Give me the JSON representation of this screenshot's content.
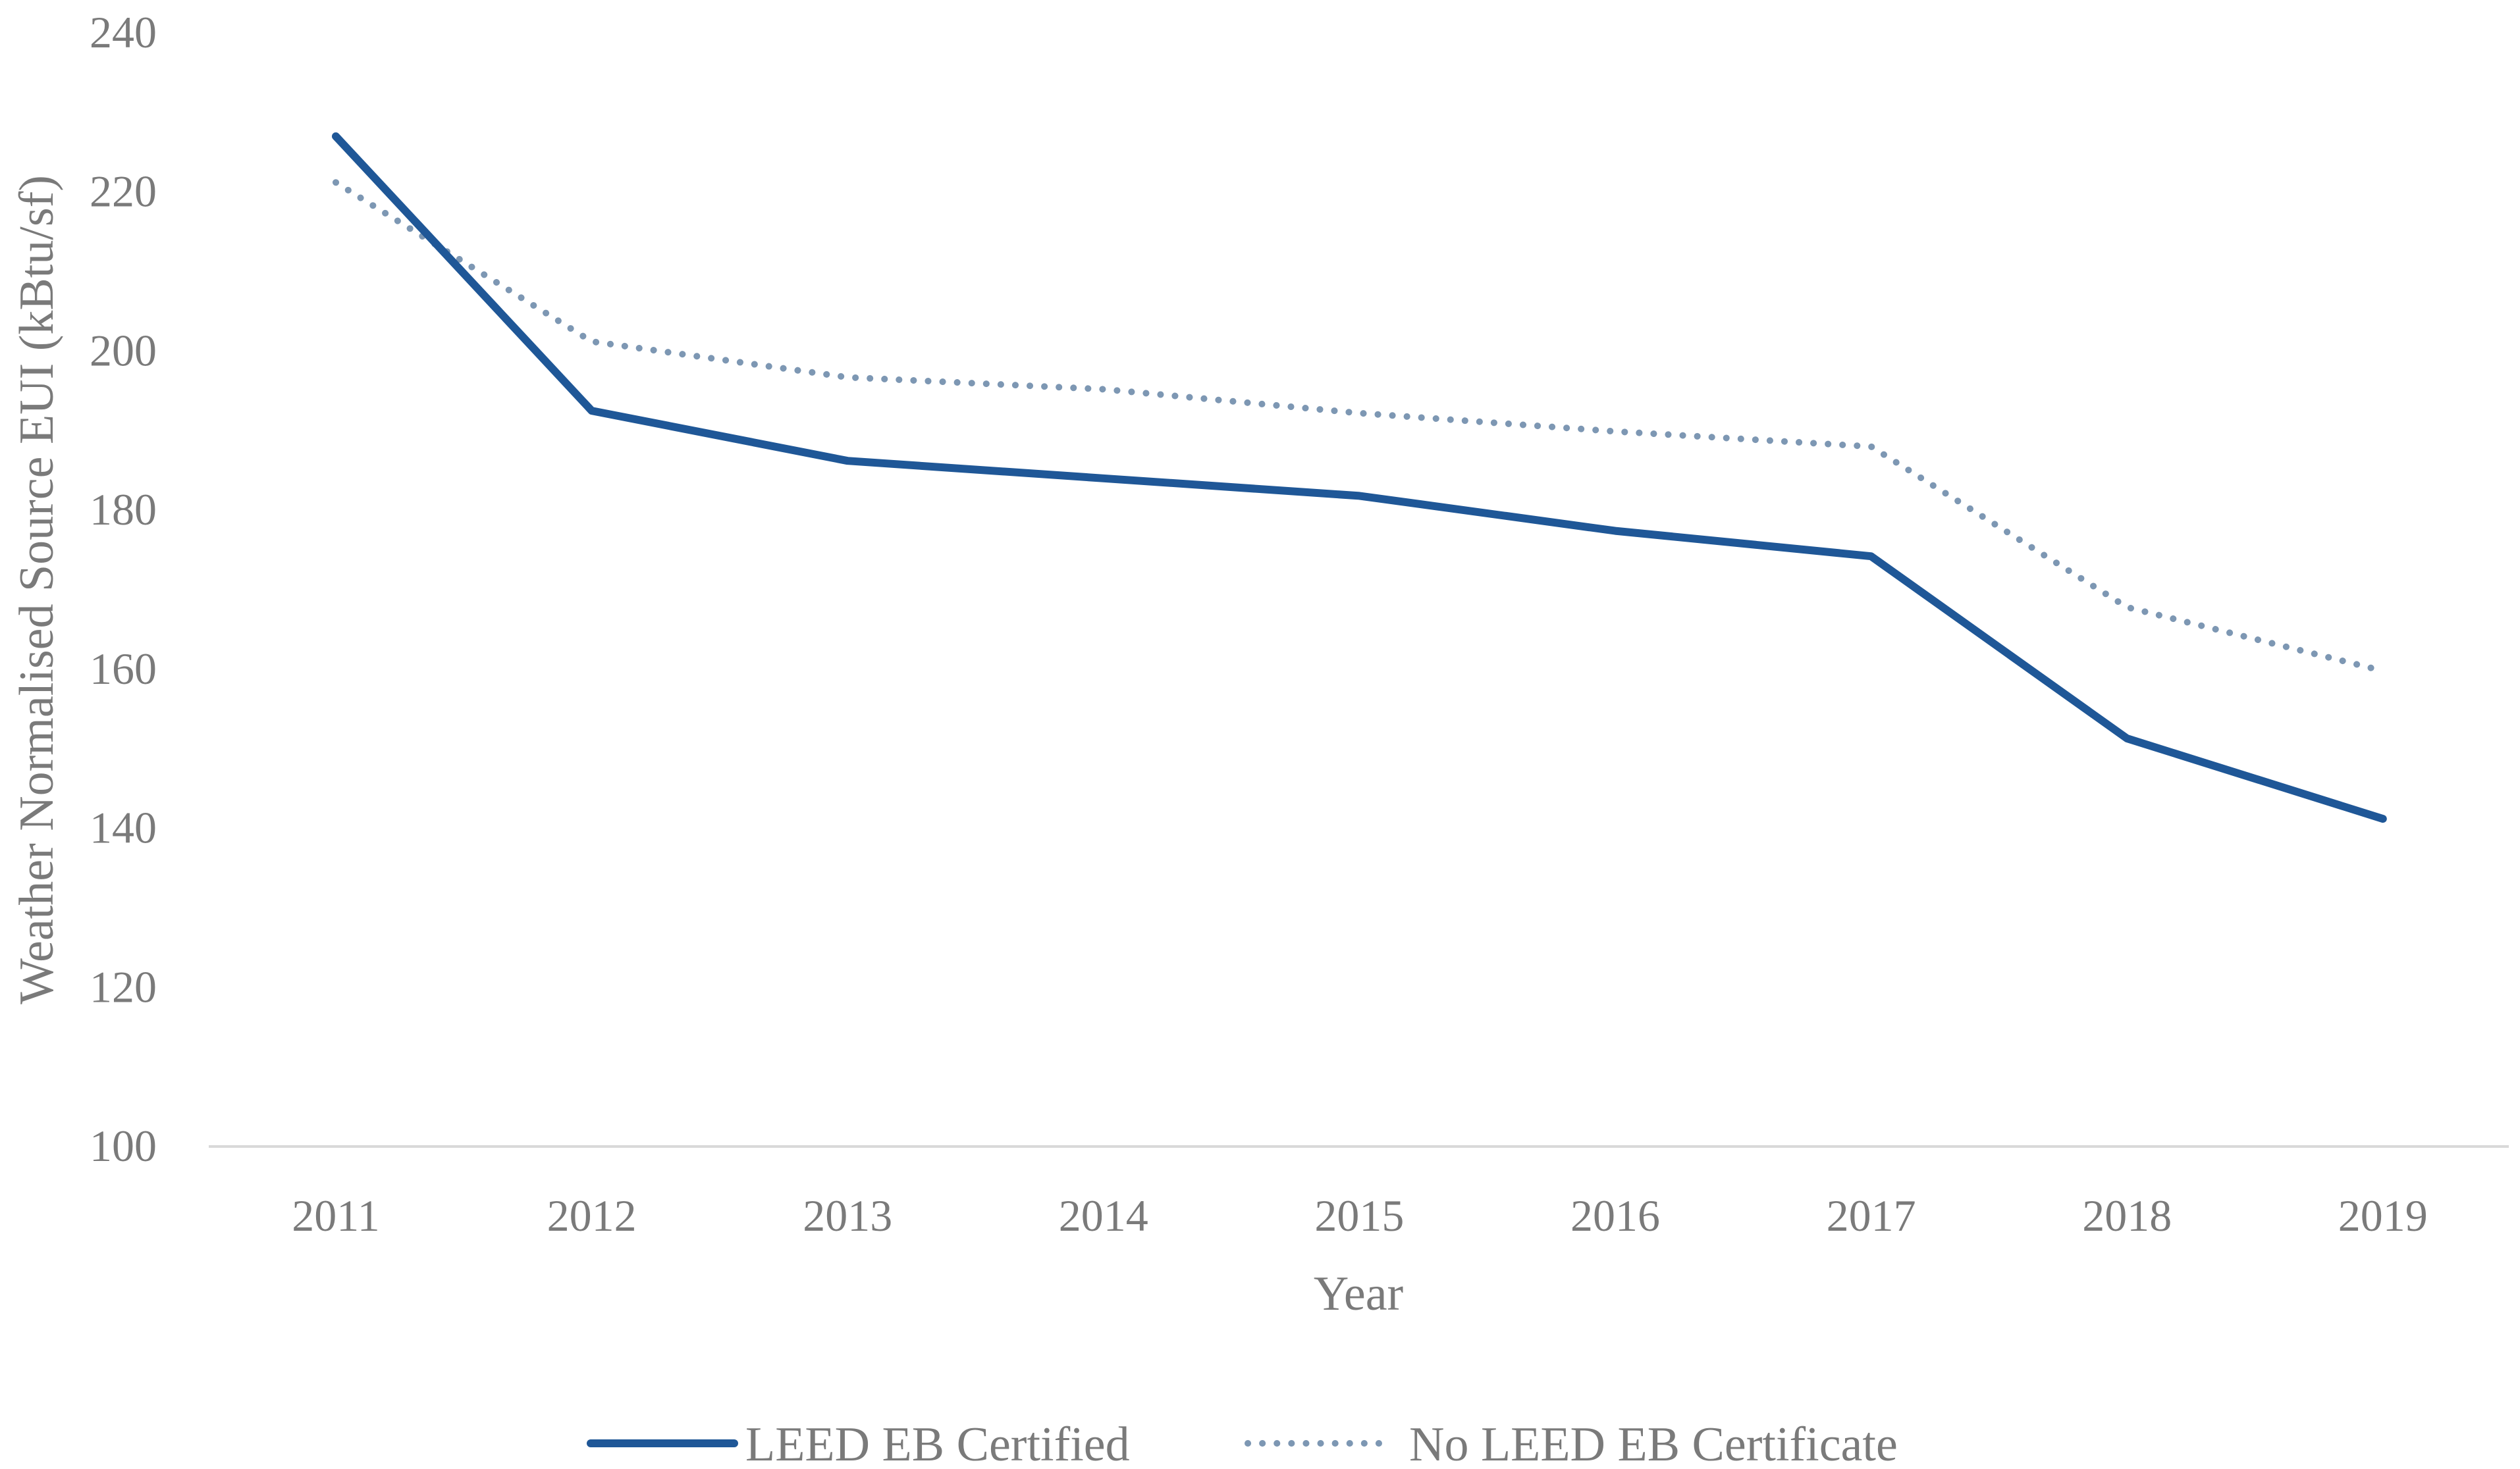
{
  "chart_data": {
    "type": "line",
    "title": "",
    "xlabel": "Year",
    "ylabel": "Weather Normalised Source EUI (kBtu/sf)",
    "categories": [
      "2011",
      "2012",
      "2013",
      "2014",
      "2015",
      "2016",
      "2017",
      "2018",
      "2019"
    ],
    "ylim": [
      100,
      240
    ],
    "yticks": [
      100,
      120,
      140,
      160,
      180,
      200,
      220,
      240
    ],
    "grid": false,
    "legend_position": "bottom",
    "series": [
      {
        "name": "LEED EB Certified",
        "style": "solid",
        "color": "#1f5797",
        "values": [
          227,
          192.5,
          186.2,
          184,
          181.8,
          177.4,
          174.2,
          151.3,
          141.2
        ]
      },
      {
        "name": "No LEED EB Certificate",
        "style": "dotted",
        "color": "#7d97b3",
        "values": [
          221.2,
          201.2,
          196.7,
          195.2,
          192.2,
          189.9,
          188,
          167.8,
          159.8
        ]
      }
    ]
  }
}
